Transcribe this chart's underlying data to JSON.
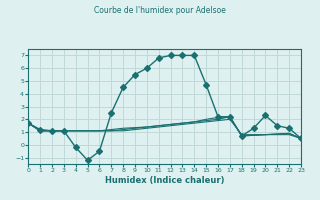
{
  "title": "Courbe de l'humidex pour Adelsoe",
  "xlabel": "Humidex (Indice chaleur)",
  "ylabel": "",
  "xlim": [
    0,
    23
  ],
  "ylim": [
    -1.5,
    7.5
  ],
  "yticks": [
    -1,
    0,
    1,
    2,
    3,
    4,
    5,
    6,
    7
  ],
  "xticks": [
    0,
    1,
    2,
    3,
    4,
    5,
    6,
    7,
    8,
    9,
    10,
    11,
    12,
    13,
    14,
    15,
    16,
    17,
    18,
    19,
    20,
    21,
    22,
    23
  ],
  "bg_color": "#dff0f0",
  "line_color": "#1a7070",
  "grid_color": "#c0d8d8",
  "series": [
    {
      "x": [
        0,
        1,
        2,
        3,
        4,
        5,
        6,
        7,
        8,
        9,
        10,
        11,
        12,
        13,
        14,
        15,
        16,
        17,
        18,
        19,
        20,
        21,
        22,
        23
      ],
      "y": [
        1.7,
        1.2,
        1.1,
        1.1,
        -0.2,
        -1.2,
        -0.5,
        2.5,
        4.5,
        5.5,
        6.0,
        6.8,
        7.0,
        7.0,
        7.0,
        4.7,
        2.2,
        2.2,
        0.7,
        1.3,
        2.3,
        1.5,
        1.3,
        0.5
      ],
      "marker": "D",
      "markersize": 3,
      "has_marker": true
    },
    {
      "x": [
        0,
        1,
        2,
        3,
        4,
        5,
        6,
        7,
        8,
        9,
        10,
        11,
        12,
        13,
        14,
        15,
        16,
        17,
        18,
        19,
        20,
        21,
        22,
        23
      ],
      "y": [
        1.7,
        1.1,
        1.1,
        1.1,
        1.1,
        1.1,
        1.1,
        1.1,
        1.1,
        1.2,
        1.3,
        1.4,
        1.5,
        1.6,
        1.7,
        1.8,
        1.9,
        2.0,
        0.8,
        0.8,
        0.8,
        0.8,
        0.8,
        0.5
      ],
      "marker": null,
      "markersize": 0,
      "has_marker": false
    },
    {
      "x": [
        0,
        1,
        2,
        3,
        4,
        5,
        6,
        7,
        8,
        9,
        10,
        11,
        12,
        13,
        14,
        15,
        16,
        17,
        18,
        19,
        20,
        21,
        22,
        23
      ],
      "y": [
        1.7,
        1.1,
        1.1,
        1.1,
        1.1,
        1.1,
        1.1,
        1.1,
        1.2,
        1.3,
        1.4,
        1.5,
        1.6,
        1.7,
        1.8,
        1.9,
        2.0,
        2.2,
        0.7,
        0.75,
        0.8,
        0.85,
        0.9,
        0.5
      ],
      "marker": null,
      "markersize": 0,
      "has_marker": false
    },
    {
      "x": [
        0,
        1,
        2,
        3,
        4,
        5,
        6,
        7,
        8,
        9,
        10,
        11,
        12,
        13,
        14,
        15,
        16,
        17,
        18,
        19,
        20,
        21,
        22,
        23
      ],
      "y": [
        1.7,
        1.1,
        1.1,
        1.1,
        1.1,
        1.1,
        1.1,
        1.2,
        1.3,
        1.35,
        1.4,
        1.5,
        1.6,
        1.7,
        1.8,
        2.0,
        2.15,
        2.2,
        0.7,
        0.75,
        0.8,
        0.85,
        0.9,
        0.5
      ],
      "marker": null,
      "markersize": 0,
      "has_marker": false
    }
  ]
}
